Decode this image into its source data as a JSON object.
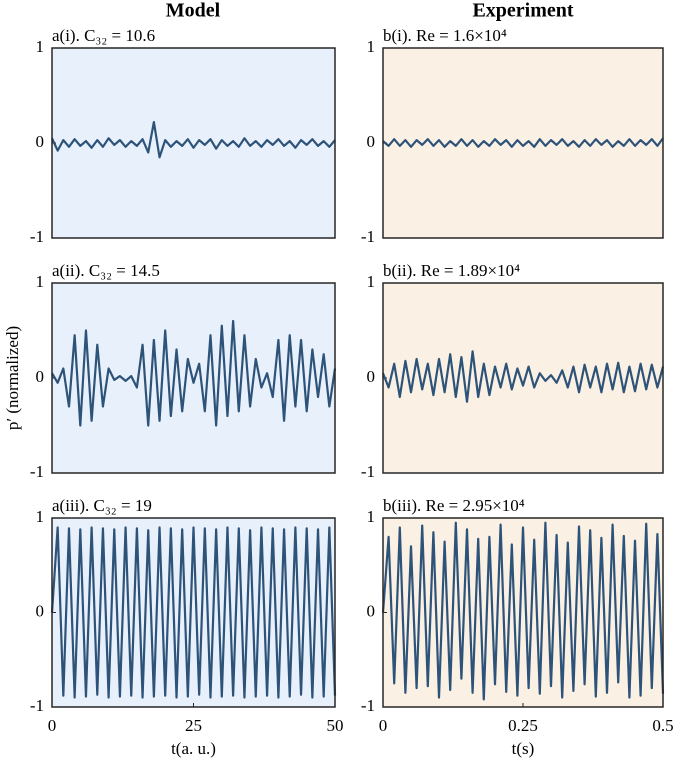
{
  "figure": {
    "column_titles": [
      "Model",
      "Experiment"
    ],
    "ylabel": "p′ (normalized)"
  },
  "chart_data": [
    {
      "type": "line",
      "title": "a(i). C₃₂ = 10.6",
      "background": "#e8f0fc",
      "color": "#2e5379",
      "xlim": [
        0,
        50
      ],
      "ylim": [
        -1,
        1
      ],
      "yticks": [
        -1,
        0,
        1
      ],
      "series": [
        {
          "x": [
            0,
            1,
            2,
            3,
            4,
            5,
            6,
            7,
            8,
            9,
            10,
            11,
            12,
            13,
            14,
            15,
            16,
            17,
            18,
            19,
            20,
            21,
            22,
            23,
            24,
            25,
            26,
            27,
            28,
            29,
            30,
            31,
            32,
            33,
            34,
            35,
            36,
            37,
            38,
            39,
            40,
            41,
            42,
            43,
            44,
            45,
            46,
            47,
            48,
            49,
            50
          ],
          "values": [
            0.05,
            -0.08,
            0.03,
            -0.04,
            0.04,
            -0.03,
            0.02,
            -0.05,
            0.03,
            -0.04,
            0.05,
            -0.02,
            0.03,
            -0.04,
            0.02,
            -0.03,
            0.04,
            -0.1,
            0.22,
            -0.15,
            0.03,
            -0.04,
            0.02,
            -0.03,
            0.04,
            -0.05,
            0.03,
            -0.02,
            0.04,
            -0.06,
            0.03,
            -0.03,
            0.02,
            -0.04,
            0.05,
            -0.03,
            0.02,
            -0.04,
            0.03,
            -0.02,
            0.04,
            -0.03,
            0.02,
            -0.05,
            0.03,
            -0.02,
            0.04,
            -0.03,
            0.02,
            -0.04,
            0.03
          ]
        }
      ]
    },
    {
      "type": "line",
      "title": "b(i). Re = 1.6×10⁴",
      "background": "#faf0e4",
      "color": "#2e5379",
      "xlim": [
        0,
        0.5
      ],
      "ylim": [
        -1,
        1
      ],
      "yticks": [
        -1,
        0,
        1
      ],
      "series": [
        {
          "x": [
            0,
            0.01,
            0.02,
            0.03,
            0.04,
            0.05,
            0.06,
            0.07,
            0.08,
            0.09,
            0.1,
            0.11,
            0.12,
            0.13,
            0.14,
            0.15,
            0.16,
            0.17,
            0.18,
            0.19,
            0.2,
            0.21,
            0.22,
            0.23,
            0.24,
            0.25,
            0.26,
            0.27,
            0.28,
            0.29,
            0.3,
            0.31,
            0.32,
            0.33,
            0.34,
            0.35,
            0.36,
            0.37,
            0.38,
            0.39,
            0.4,
            0.41,
            0.42,
            0.43,
            0.44,
            0.45,
            0.46,
            0.47,
            0.48,
            0.49,
            0.5
          ],
          "values": [
            0.02,
            -0.03,
            0.04,
            -0.03,
            0.03,
            -0.04,
            0.03,
            -0.02,
            0.04,
            -0.03,
            0.03,
            -0.04,
            0.02,
            -0.03,
            0.04,
            -0.03,
            0.03,
            -0.04,
            0.02,
            -0.03,
            0.04,
            -0.02,
            0.03,
            -0.04,
            0.03,
            -0.03,
            0.02,
            -0.04,
            0.04,
            -0.03,
            0.03,
            -0.02,
            0.04,
            -0.03,
            0.02,
            -0.04,
            0.03,
            -0.03,
            0.04,
            -0.02,
            0.03,
            -0.04,
            0.02,
            -0.03,
            0.04,
            -0.03,
            0.03,
            -0.02,
            0.04,
            -0.03,
            0.05
          ]
        }
      ]
    },
    {
      "type": "line",
      "title": "a(ii). C₃₂ = 14.5",
      "background": "#e8f0fc",
      "color": "#2e5379",
      "xlim": [
        0,
        50
      ],
      "ylim": [
        -1,
        1
      ],
      "yticks": [
        -1,
        0,
        1
      ],
      "series": [
        {
          "x": [
            0,
            1,
            2,
            3,
            4,
            5,
            6,
            7,
            8,
            9,
            10,
            11,
            12,
            13,
            14,
            15,
            16,
            17,
            18,
            19,
            20,
            21,
            22,
            23,
            24,
            25,
            26,
            27,
            28,
            29,
            30,
            31,
            32,
            33,
            34,
            35,
            36,
            37,
            38,
            39,
            40,
            41,
            42,
            43,
            44,
            45,
            46,
            47,
            48,
            49,
            50
          ],
          "values": [
            0.05,
            -0.05,
            0.1,
            -0.3,
            0.45,
            -0.5,
            0.5,
            -0.45,
            0.35,
            -0.3,
            0.1,
            -0.02,
            0.02,
            -0.03,
            0.02,
            -0.1,
            0.35,
            -0.5,
            0.4,
            -0.45,
            0.5,
            -0.4,
            0.3,
            -0.35,
            0.2,
            -0.05,
            0.15,
            -0.35,
            0.45,
            -0.5,
            0.55,
            -0.4,
            0.6,
            -0.35,
            0.45,
            -0.3,
            0.2,
            -0.1,
            0.05,
            -0.2,
            0.4,
            -0.45,
            0.45,
            -0.3,
            0.4,
            -0.35,
            0.3,
            -0.2,
            0.25,
            -0.3,
            0.1
          ]
        }
      ]
    },
    {
      "type": "line",
      "title": "b(ii). Re = 1.89×10⁴",
      "background": "#faf0e4",
      "color": "#2e5379",
      "xlim": [
        0,
        0.5
      ],
      "ylim": [
        -1,
        1
      ],
      "yticks": [
        -1,
        0,
        1
      ],
      "series": [
        {
          "x": [
            0,
            0.01,
            0.02,
            0.03,
            0.04,
            0.05,
            0.06,
            0.07,
            0.08,
            0.09,
            0.1,
            0.11,
            0.12,
            0.13,
            0.14,
            0.15,
            0.16,
            0.17,
            0.18,
            0.19,
            0.2,
            0.21,
            0.22,
            0.23,
            0.24,
            0.25,
            0.26,
            0.27,
            0.28,
            0.29,
            0.3,
            0.31,
            0.32,
            0.33,
            0.34,
            0.35,
            0.36,
            0.37,
            0.38,
            0.39,
            0.4,
            0.41,
            0.42,
            0.43,
            0.44,
            0.45,
            0.46,
            0.47,
            0.48,
            0.49,
            0.5
          ],
          "values": [
            0.05,
            -0.1,
            0.15,
            -0.2,
            0.18,
            -0.15,
            0.2,
            -0.12,
            0.15,
            -0.18,
            0.2,
            -0.15,
            0.25,
            -0.2,
            0.22,
            -0.25,
            0.28,
            -0.2,
            0.15,
            -0.18,
            0.12,
            -0.1,
            0.15,
            -0.12,
            0.1,
            -0.08,
            0.12,
            -0.1,
            0.05,
            -0.03,
            0.03,
            -0.05,
            0.08,
            -0.1,
            0.12,
            -0.15,
            0.14,
            -0.1,
            0.12,
            -0.15,
            0.15,
            -0.12,
            0.16,
            -0.15,
            0.12,
            -0.14,
            0.15,
            -0.12,
            0.14,
            -0.1,
            0.12
          ]
        }
      ]
    },
    {
      "type": "line",
      "title": "a(iii). C₃₂ = 19",
      "background": "#e8f0fc",
      "color": "#2e5379",
      "xlim": [
        0,
        50
      ],
      "ylim": [
        -1,
        1
      ],
      "yticks": [
        -1,
        0,
        1
      ],
      "xticks": [
        0,
        25,
        50
      ],
      "xlabel": "t(a. u.)",
      "series": [
        {
          "x": [
            0,
            1,
            2,
            3,
            4,
            5,
            6,
            7,
            8,
            9,
            10,
            11,
            12,
            13,
            14,
            15,
            16,
            17,
            18,
            19,
            20,
            21,
            22,
            23,
            24,
            25,
            26,
            27,
            28,
            29,
            30,
            31,
            32,
            33,
            34,
            35,
            36,
            37,
            38,
            39,
            40,
            41,
            42,
            43,
            44,
            45,
            46,
            47,
            48,
            49,
            50
          ],
          "values": [
            0.0,
            0.9,
            -0.88,
            0.89,
            -0.9,
            0.88,
            -0.89,
            0.9,
            -0.87,
            0.89,
            -0.9,
            0.88,
            -0.89,
            0.9,
            -0.88,
            0.89,
            -0.9,
            0.87,
            -0.89,
            0.9,
            -0.88,
            0.89,
            -0.9,
            0.88,
            -0.89,
            0.9,
            -0.87,
            0.89,
            -0.9,
            0.88,
            -0.89,
            0.9,
            -0.88,
            0.89,
            -0.9,
            0.87,
            -0.89,
            0.9,
            -0.88,
            0.89,
            -0.9,
            0.88,
            -0.89,
            0.9,
            -0.87,
            0.89,
            -0.9,
            0.88,
            -0.89,
            0.9,
            -0.88
          ]
        }
      ]
    },
    {
      "type": "line",
      "title": "b(iii). Re = 2.95×10⁴",
      "background": "#faf0e4",
      "color": "#2e5379",
      "xlim": [
        0,
        0.5
      ],
      "ylim": [
        -1,
        1
      ],
      "yticks": [
        -1,
        0,
        1
      ],
      "xticks": [
        0,
        0.25,
        0.5
      ],
      "xlabel": "t(s)",
      "series": [
        {
          "x": [
            0,
            0.01,
            0.02,
            0.03,
            0.04,
            0.05,
            0.06,
            0.07,
            0.08,
            0.09,
            0.1,
            0.11,
            0.12,
            0.13,
            0.14,
            0.15,
            0.16,
            0.17,
            0.18,
            0.19,
            0.2,
            0.21,
            0.22,
            0.23,
            0.24,
            0.25,
            0.26,
            0.27,
            0.28,
            0.29,
            0.3,
            0.31,
            0.32,
            0.33,
            0.34,
            0.35,
            0.36,
            0.37,
            0.38,
            0.39,
            0.4,
            0.41,
            0.42,
            0.43,
            0.44,
            0.45,
            0.46,
            0.47,
            0.48,
            0.49,
            0.5
          ],
          "values": [
            0.0,
            0.8,
            -0.75,
            0.9,
            -0.85,
            0.7,
            -0.8,
            0.92,
            -0.78,
            0.85,
            -0.9,
            0.75,
            -0.82,
            0.95,
            -0.7,
            0.88,
            -0.85,
            0.78,
            -0.92,
            0.8,
            -0.76,
            0.93,
            -0.84,
            0.72,
            -0.88,
            0.9,
            -0.8,
            0.77,
            -0.86,
            0.95,
            -0.78,
            0.82,
            -0.9,
            0.74,
            -0.83,
            0.91,
            -0.76,
            0.87,
            -0.89,
            0.79,
            -0.85,
            0.93,
            -0.74,
            0.81,
            -0.9,
            0.76,
            -0.88,
            0.94,
            -0.8,
            0.83,
            -0.86
          ]
        }
      ]
    }
  ]
}
